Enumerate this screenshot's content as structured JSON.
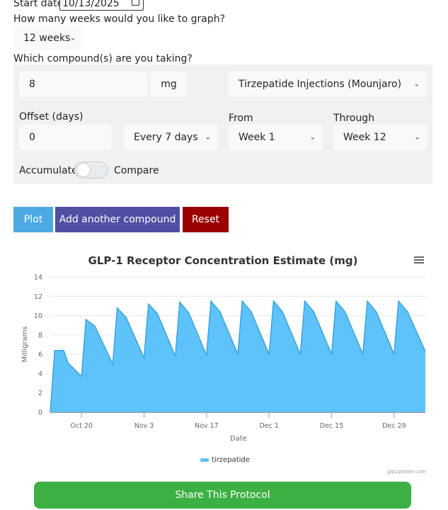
{
  "form": {
    "start_date_label": "Start date:",
    "start_date_value": "10/13/2025",
    "weeks_question": "How many weeks would you like to graph?",
    "weeks_selected": "12 weeks",
    "compound_question": "Which compound(s) are you taking?"
  },
  "compound": {
    "dose_value": "8",
    "unit": "mg",
    "compound_selected": "Tirzepatide Injections (Mounjaro)",
    "offset_label": "Offset (days)",
    "offset_value": "0",
    "frequency_selected": "Every 7 days",
    "from_label": "From",
    "from_selected": "Week 1",
    "through_label": "Through",
    "through_selected": "Week 12",
    "accumulate_label": "Accumulate",
    "compare_label": "Compare",
    "toggle_state": "Accumulate"
  },
  "buttons": {
    "plot": "Plot",
    "add_compound": "Add another compound",
    "reset": "Reset",
    "share": "Share This Protocol"
  },
  "colors": {
    "plot": "#4ea9e3",
    "add_compound": "#4f4fa3",
    "reset": "#9b0000",
    "share": "#3cb043",
    "series_fill": "#5ec3fb",
    "series_line": "#3aa2dd"
  },
  "chart_data": {
    "type": "area",
    "title": "GLP-1 Receptor Concentration Estimate (mg)",
    "xlabel": "Date",
    "ylabel": "Milligrams",
    "ylim": [
      0,
      14
    ],
    "yticks": [
      "0",
      "2",
      "4",
      "6",
      "8",
      "10",
      "12",
      "14"
    ],
    "xlim": [
      "2025-10-13",
      "2026-01-05"
    ],
    "xticks": [
      {
        "date": "2025-10-20",
        "label": "Oct 20"
      },
      {
        "date": "2025-11-03",
        "label": "Nov 3"
      },
      {
        "date": "2025-11-17",
        "label": "Nov 17"
      },
      {
        "date": "2025-12-01",
        "label": "Dec 1"
      },
      {
        "date": "2025-12-15",
        "label": "Dec 15"
      },
      {
        "date": "2025-12-29",
        "label": "Dec 29"
      }
    ],
    "grid": true,
    "legend": "bottom-center",
    "series": [
      {
        "name": "tirzepatide",
        "points": [
          {
            "x": "2025-10-13",
            "y": 0
          },
          {
            "x": "2025-10-14",
            "y": 6.4
          },
          {
            "x": "2025-10-16",
            "y": 6.4
          },
          {
            "x": "2025-10-17",
            "y": 5.1
          },
          {
            "x": "2025-10-20",
            "y": 3.7
          },
          {
            "x": "2025-10-21",
            "y": 9.6
          },
          {
            "x": "2025-10-23",
            "y": 8.9
          },
          {
            "x": "2025-10-27",
            "y": 5.0
          },
          {
            "x": "2025-10-28",
            "y": 10.8
          },
          {
            "x": "2025-10-30",
            "y": 9.8
          },
          {
            "x": "2025-11-03",
            "y": 5.6
          },
          {
            "x": "2025-11-04",
            "y": 11.2
          },
          {
            "x": "2025-11-06",
            "y": 10.2
          },
          {
            "x": "2025-11-10",
            "y": 5.8
          },
          {
            "x": "2025-11-11",
            "y": 11.4
          },
          {
            "x": "2025-11-13",
            "y": 10.3
          },
          {
            "x": "2025-11-17",
            "y": 5.9
          },
          {
            "x": "2025-11-18",
            "y": 11.5
          },
          {
            "x": "2025-11-20",
            "y": 10.4
          },
          {
            "x": "2025-11-24",
            "y": 6.0
          },
          {
            "x": "2025-11-25",
            "y": 11.5
          },
          {
            "x": "2025-11-27",
            "y": 10.4
          },
          {
            "x": "2025-12-01",
            "y": 6.0
          },
          {
            "x": "2025-12-02",
            "y": 11.5
          },
          {
            "x": "2025-12-04",
            "y": 10.4
          },
          {
            "x": "2025-12-08",
            "y": 6.0
          },
          {
            "x": "2025-12-09",
            "y": 11.5
          },
          {
            "x": "2025-12-11",
            "y": 10.4
          },
          {
            "x": "2025-12-15",
            "y": 6.0
          },
          {
            "x": "2025-12-16",
            "y": 11.5
          },
          {
            "x": "2025-12-18",
            "y": 10.4
          },
          {
            "x": "2025-12-22",
            "y": 6.0
          },
          {
            "x": "2025-12-23",
            "y": 11.5
          },
          {
            "x": "2025-12-25",
            "y": 10.4
          },
          {
            "x": "2025-12-29",
            "y": 6.0
          },
          {
            "x": "2025-12-30",
            "y": 11.5
          },
          {
            "x": "2026-01-01",
            "y": 10.4
          },
          {
            "x": "2026-01-05",
            "y": 6.3
          }
        ]
      }
    ],
    "credit": "glp1plotter.com"
  }
}
